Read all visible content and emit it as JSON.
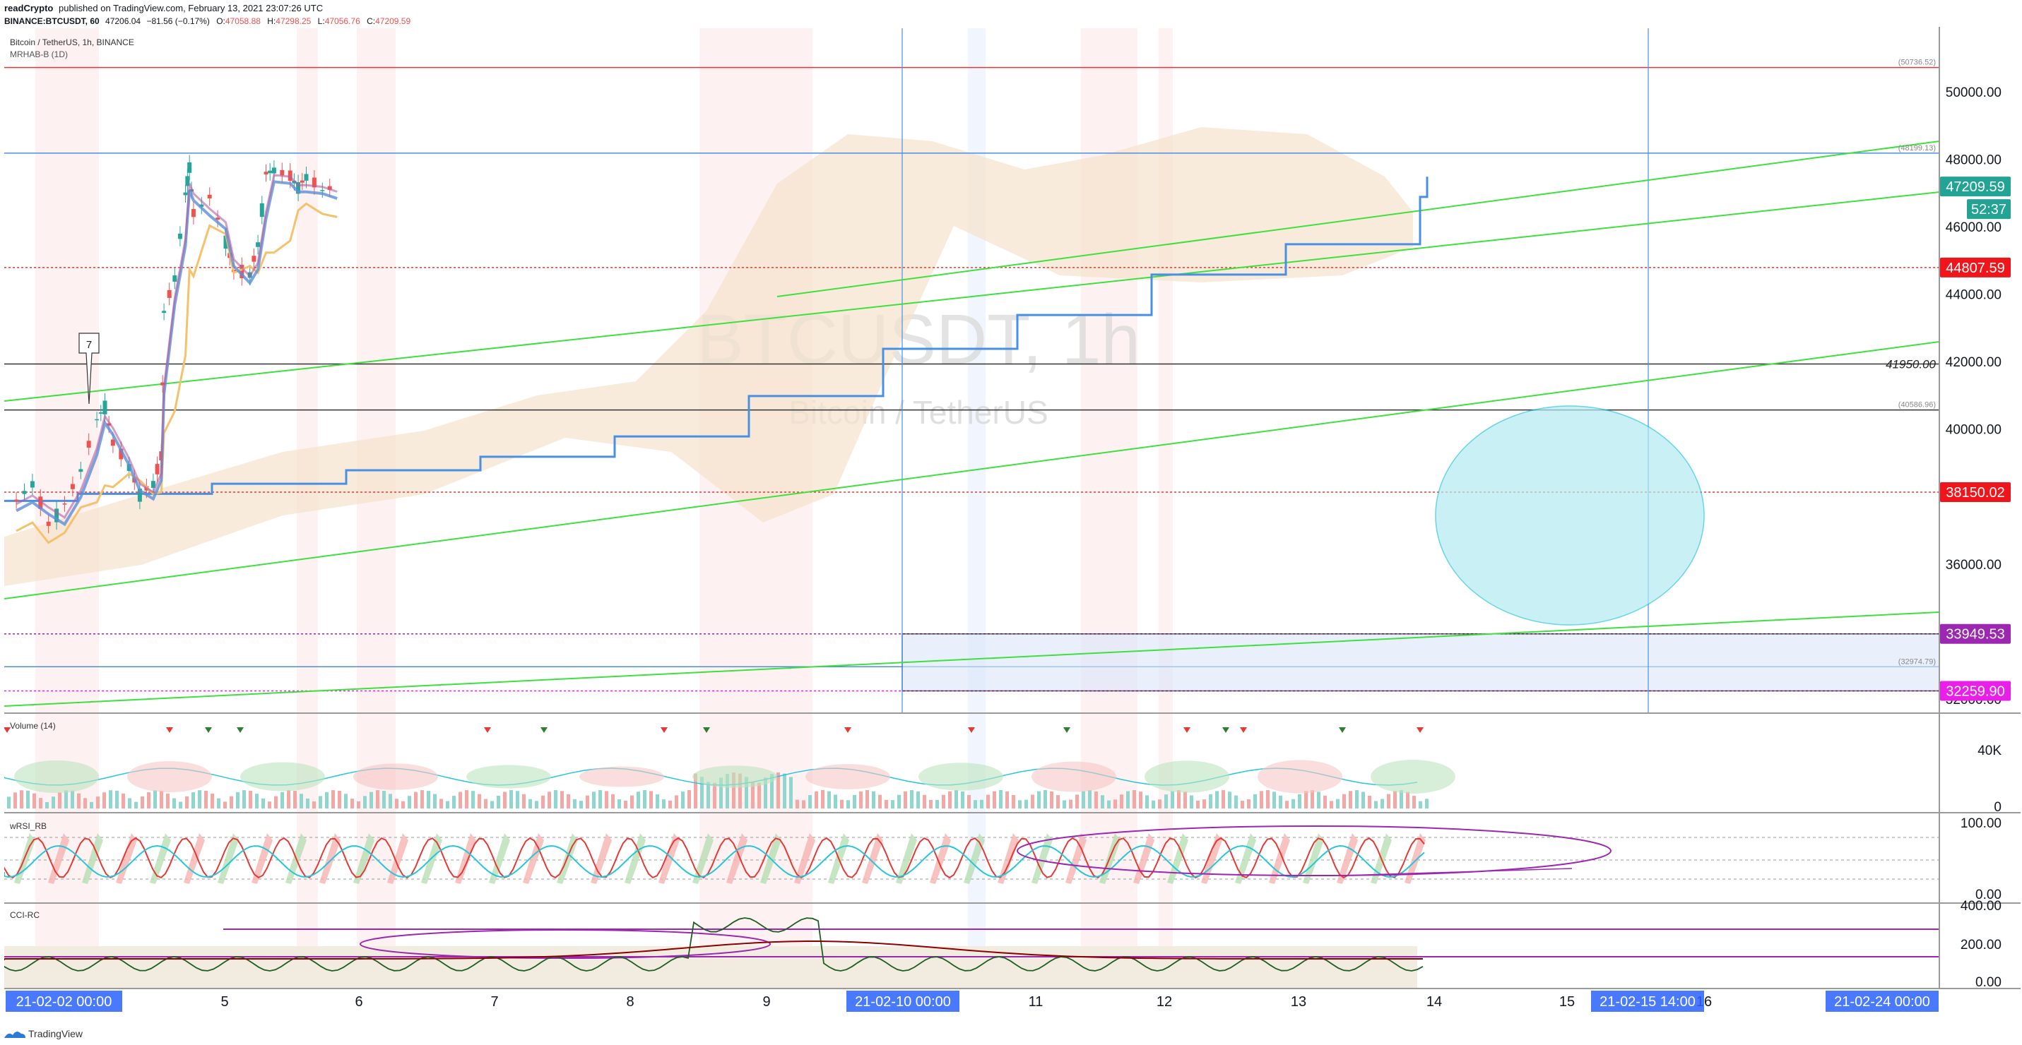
{
  "header": {
    "author": "readCrypto",
    "published_text": "published on TradingView.com, February 13, 2021 23:07:26 UTC",
    "symbol_line": "BINANCE:BTCUSDT, 60",
    "last": "47206.04",
    "change": "−81.56 (−0.17%)",
    "ohlc": [
      {
        "label": "O:",
        "value": "47058.88"
      },
      {
        "label": "H:",
        "value": "47298.25"
      },
      {
        "label": "L:",
        "value": "47056.76"
      },
      {
        "label": "C:",
        "value": "47209.59"
      }
    ],
    "legend_line1": "Bitcoin / TetherUS, 1h, BINANCE",
    "legend_line2": "MRHAB-B (1D)"
  },
  "watermark": {
    "symbol": "BTCUSDT, 1h",
    "name": "Bitcoin / TetherUS"
  },
  "footer": {
    "brand": "TradingView"
  },
  "colors": {
    "up": "#26a69a",
    "down": "#ef5350",
    "green_line": "#3ee03e",
    "blue_line": "#4a90e2",
    "purple": "#9c27b0",
    "magenta": "#e91ee9",
    "red_label": "#f0141b",
    "teal_label": "#22a393",
    "circle": "#26c6da"
  },
  "chart_data": [
    {
      "type": "line",
      "panel": "price",
      "y_axis_ticks": [
        "50000.00",
        "48000.00",
        "46000.00",
        "44000.00",
        "42000.00",
        "40000.00",
        "38000.00",
        "36000.00",
        "34000.00",
        "32000.00"
      ],
      "ylim": [
        31600,
        51900
      ],
      "x_axis_ticks": [
        "5",
        "6",
        "7",
        "8",
        "9",
        "11",
        "12",
        "13",
        "14",
        "15",
        "16"
      ],
      "x_range": [
        "21-02-03 15:00",
        "21-02-24 21:00"
      ],
      "x_highlights": [
        "21-02-02   00:00",
        "21-02-10   00:00",
        "21-02-15   14:00",
        "21-02-24   00:00"
      ],
      "price_labels": [
        {
          "value": "47209.59",
          "kind": "last"
        },
        {
          "value": "52:37",
          "kind": "countdown"
        },
        {
          "value": "44807.59",
          "kind": "red"
        },
        {
          "value": "38150.02",
          "kind": "red"
        },
        {
          "value": "33949.53",
          "kind": "purple"
        },
        {
          "value": "32259.90",
          "kind": "magenta"
        }
      ],
      "level_notes": [
        "(50736.52)",
        "(48199.13)",
        "41950.00",
        "(40586.96)",
        "(32974.79)"
      ],
      "horizontal_levels": [
        50736.52,
        48199.13,
        44807.59,
        41950.0,
        40586.96,
        38150.02,
        33949.53,
        32974.79,
        32259.9
      ],
      "annotation_callout": "7",
      "close_series": [
        {
          "t": "2021-02-04 00:00",
          "v": 37900
        },
        {
          "t": "2021-02-04 12:00",
          "v": 38400
        },
        {
          "t": "2021-02-05 00:00",
          "v": 37200
        },
        {
          "t": "2021-02-05 12:00",
          "v": 37800
        },
        {
          "t": "2021-02-06 00:00",
          "v": 38800
        },
        {
          "t": "2021-02-06 12:00",
          "v": 40300
        },
        {
          "t": "2021-02-06 18:00",
          "v": 40700
        },
        {
          "t": "2021-02-07 00:00",
          "v": 39600
        },
        {
          "t": "2021-02-07 12:00",
          "v": 38900
        },
        {
          "t": "2021-02-07 20:00",
          "v": 38100
        },
        {
          "t": "2021-02-08 06:00",
          "v": 38400
        },
        {
          "t": "2021-02-08 12:00",
          "v": 39200
        },
        {
          "t": "2021-02-08 14:00",
          "v": 43500
        },
        {
          "t": "2021-02-08 22:00",
          "v": 44500
        },
        {
          "t": "2021-02-09 06:00",
          "v": 47000
        },
        {
          "t": "2021-02-09 09:00",
          "v": 47800
        },
        {
          "t": "2021-02-09 12:00",
          "v": 46400
        },
        {
          "t": "2021-02-10 00:00",
          "v": 46900
        },
        {
          "t": "2021-02-10 12:00",
          "v": 45600
        },
        {
          "t": "2021-02-10 18:00",
          "v": 44700
        },
        {
          "t": "2021-02-11 06:00",
          "v": 44600
        },
        {
          "t": "2021-02-11 12:00",
          "v": 45500
        },
        {
          "t": "2021-02-11 18:00",
          "v": 47600
        },
        {
          "t": "2021-02-12 00:00",
          "v": 47700
        },
        {
          "t": "2021-02-12 12:00",
          "v": 47500
        },
        {
          "t": "2021-02-12 18:00",
          "v": 47200
        },
        {
          "t": "2021-02-13 00:00",
          "v": 47500
        },
        {
          "t": "2021-02-13 12:00",
          "v": 47100
        },
        {
          "t": "2021-02-13 23:00",
          "v": 47210
        }
      ],
      "step_line": [
        38100,
        38400,
        38800,
        39200,
        39800,
        41000,
        42400,
        43400,
        44600,
        45500,
        46900,
        47500
      ]
    },
    {
      "type": "bar",
      "panel": "volume",
      "title": "Volume (14)",
      "y_axis_ticks": [
        "40K",
        "0"
      ]
    },
    {
      "type": "line",
      "panel": "wrsi",
      "title": "wRSI_RB",
      "y_axis_ticks": [
        "100.00",
        "0.00"
      ]
    },
    {
      "type": "line",
      "panel": "cci",
      "title": "CCI-RC",
      "y_axis_ticks": [
        "400.00",
        "200.00",
        "0.00"
      ]
    }
  ]
}
